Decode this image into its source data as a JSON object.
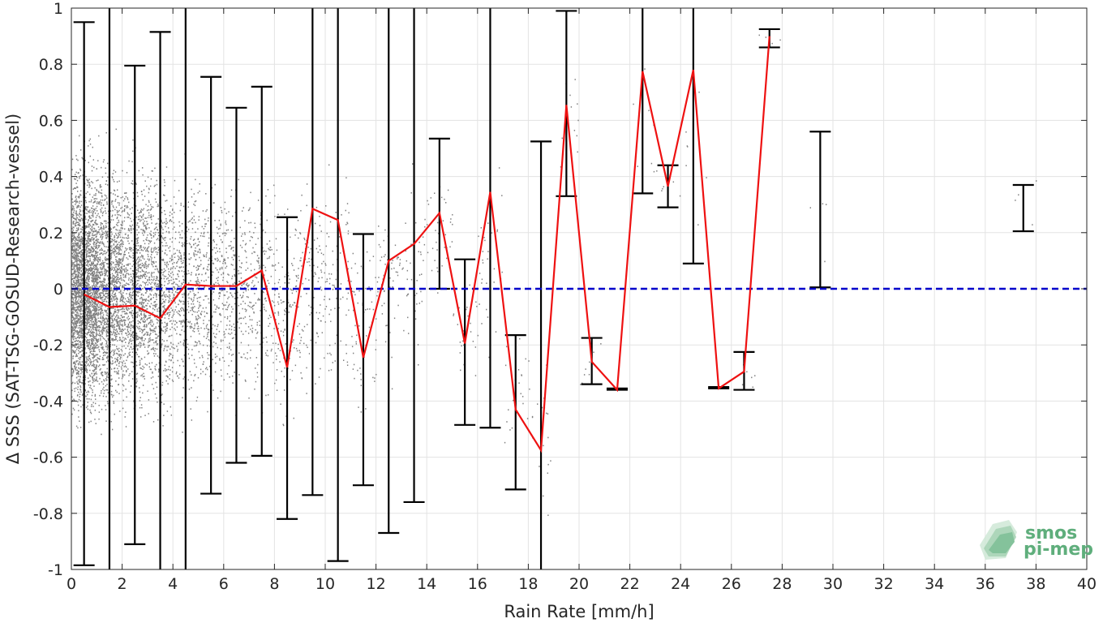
{
  "chart_data": {
    "type": "scatter",
    "xlabel": "Rain Rate [mm/h]",
    "ylabel": "Δ SSS (SAT-TSG-GOSUD-Research-vessel)",
    "xlim": [
      0,
      40
    ],
    "ylim": [
      -1,
      1
    ],
    "xticks": [
      "0",
      "2",
      "4",
      "6",
      "8",
      "10",
      "12",
      "14",
      "16",
      "18",
      "20",
      "22",
      "24",
      "26",
      "28",
      "30",
      "32",
      "34",
      "36",
      "38",
      "40"
    ],
    "yticks": [
      "-1",
      "-0.8",
      "-0.6",
      "-0.4",
      "-0.2",
      "0",
      "0.2",
      "0.4",
      "0.6",
      "0.8",
      "1"
    ],
    "grid": true,
    "reference_line": {
      "y": 0,
      "color": "#0000cc",
      "style": "dashed"
    },
    "mean_line": {
      "color": "#ee1111",
      "x": [
        0.5,
        1.5,
        2.5,
        3.5,
        4.5,
        5.5,
        6.5,
        7.5,
        8.5,
        9.5,
        10.5,
        11.5,
        12.5,
        13.5,
        14.5,
        15.5,
        16.5,
        17.5,
        18.5,
        19.5,
        20.5,
        21.5,
        22.5,
        23.5,
        24.5,
        25.5,
        26.5,
        27.5
      ],
      "y": [
        -0.02,
        -0.065,
        -0.06,
        -0.105,
        0.015,
        0.01,
        0.01,
        0.065,
        -0.28,
        0.285,
        0.245,
        -0.245,
        0.1,
        0.16,
        0.27,
        -0.195,
        0.345,
        -0.43,
        -0.575,
        0.655,
        -0.26,
        -0.36,
        0.775,
        0.365,
        0.78,
        -0.355,
        -0.295,
        0.9
      ]
    },
    "error_bars": [
      {
        "x": 0.5,
        "low": -0.985,
        "high": 0.95
      },
      {
        "x": 1.5,
        "low": -1.1,
        "high": 1.1
      },
      {
        "x": 2.5,
        "low": -0.91,
        "high": 0.795
      },
      {
        "x": 3.5,
        "low": -1.1,
        "high": 0.915
      },
      {
        "x": 4.5,
        "low": -1.1,
        "high": 1.1
      },
      {
        "x": 5.5,
        "low": -0.73,
        "high": 0.755
      },
      {
        "x": 6.5,
        "low": -0.62,
        "high": 0.645
      },
      {
        "x": 7.5,
        "low": -0.595,
        "high": 0.72
      },
      {
        "x": 8.5,
        "low": -0.82,
        "high": 0.255
      },
      {
        "x": 9.5,
        "low": -0.735,
        "high": 1.1
      },
      {
        "x": 10.5,
        "low": -0.97,
        "high": 1.1
      },
      {
        "x": 11.5,
        "low": -0.7,
        "high": 0.195
      },
      {
        "x": 12.5,
        "low": -0.87,
        "high": 1.1
      },
      {
        "x": 13.5,
        "low": -0.76,
        "high": 1.1
      },
      {
        "x": 14.5,
        "low": 0.0,
        "high": 0.535
      },
      {
        "x": 15.5,
        "low": -0.485,
        "high": 0.105
      },
      {
        "x": 16.5,
        "low": -0.495,
        "high": 1.1
      },
      {
        "x": 17.5,
        "low": -0.715,
        "high": -0.165
      },
      {
        "x": 18.5,
        "low": -1.1,
        "high": 0.525
      },
      {
        "x": 19.5,
        "low": 0.33,
        "high": 0.99
      },
      {
        "x": 20.5,
        "low": -0.34,
        "high": -0.175
      },
      {
        "x": 21.5,
        "low": -0.36,
        "high": -0.355
      },
      {
        "x": 22.5,
        "low": 0.34,
        "high": 1.1
      },
      {
        "x": 23.5,
        "low": 0.29,
        "high": 0.44
      },
      {
        "x": 24.5,
        "low": 0.09,
        "high": 1.1
      },
      {
        "x": 25.5,
        "low": -0.355,
        "high": -0.35
      },
      {
        "x": 26.5,
        "low": -0.36,
        "high": -0.225
      },
      {
        "x": 27.5,
        "low": 0.86,
        "high": 0.925
      },
      {
        "x": 29.5,
        "low": 0.005,
        "high": 0.56
      },
      {
        "x": 37.5,
        "low": 0.205,
        "high": 0.37
      }
    ],
    "scatter_color": "#808080",
    "scatter_density": [
      {
        "x": [
          0,
          1
        ],
        "n": 2600,
        "spread": 0.38,
        "center": 0.0
      },
      {
        "x": [
          1,
          2
        ],
        "n": 1400,
        "spread": 0.38,
        "center": 0.0
      },
      {
        "x": [
          2,
          3
        ],
        "n": 900,
        "spread": 0.38,
        "center": 0.0
      },
      {
        "x": [
          3,
          4
        ],
        "n": 650,
        "spread": 0.38,
        "center": 0.0
      },
      {
        "x": [
          4,
          5
        ],
        "n": 420,
        "spread": 0.36,
        "center": 0.0
      },
      {
        "x": [
          5,
          6
        ],
        "n": 300,
        "spread": 0.36,
        "center": 0.0
      },
      {
        "x": [
          6,
          7
        ],
        "n": 230,
        "spread": 0.34,
        "center": 0.0
      },
      {
        "x": [
          7,
          8
        ],
        "n": 180,
        "spread": 0.34,
        "center": 0.0
      },
      {
        "x": [
          8,
          9
        ],
        "n": 140,
        "spread": 0.34,
        "center": -0.1
      },
      {
        "x": [
          9,
          10
        ],
        "n": 110,
        "spread": 0.34,
        "center": 0.0
      },
      {
        "x": [
          10,
          11
        ],
        "n": 80,
        "spread": 0.34,
        "center": 0.0
      },
      {
        "x": [
          11,
          12
        ],
        "n": 60,
        "spread": 0.3,
        "center": -0.1
      },
      {
        "x": [
          12,
          13
        ],
        "n": 55,
        "spread": 0.3,
        "center": 0.05
      },
      {
        "x": [
          13,
          14
        ],
        "n": 45,
        "spread": 0.3,
        "center": 0.05
      },
      {
        "x": [
          14,
          15
        ],
        "n": 35,
        "spread": 0.2,
        "center": 0.2
      },
      {
        "x": [
          15,
          16
        ],
        "n": 30,
        "spread": 0.25,
        "center": -0.1
      },
      {
        "x": [
          16,
          17
        ],
        "n": 30,
        "spread": 0.3,
        "center": 0.1
      },
      {
        "x": [
          17,
          18
        ],
        "n": 20,
        "spread": 0.25,
        "center": -0.4
      },
      {
        "x": [
          18,
          19
        ],
        "n": 20,
        "spread": 0.3,
        "center": -0.5
      },
      {
        "x": [
          19,
          20
        ],
        "n": 12,
        "spread": 0.2,
        "center": 0.6
      },
      {
        "x": [
          20,
          21
        ],
        "n": 8,
        "spread": 0.08,
        "center": -0.26
      },
      {
        "x": [
          22,
          23
        ],
        "n": 8,
        "spread": 0.2,
        "center": 0.6
      },
      {
        "x": [
          23,
          24
        ],
        "n": 6,
        "spread": 0.08,
        "center": 0.37
      },
      {
        "x": [
          24,
          25
        ],
        "n": 8,
        "spread": 0.25,
        "center": 0.5
      },
      {
        "x": [
          26,
          27
        ],
        "n": 6,
        "spread": 0.06,
        "center": -0.3
      },
      {
        "x": [
          27,
          28
        ],
        "n": 4,
        "spread": 0.03,
        "center": 0.9
      },
      {
        "x": [
          29,
          30
        ],
        "n": 4,
        "spread": 0.25,
        "center": 0.3
      },
      {
        "x": [
          37,
          38
        ],
        "n": 4,
        "spread": 0.1,
        "center": 0.3
      }
    ]
  },
  "watermark": {
    "line1": "smos",
    "line2": "pi-mep",
    "color": "#5fae7c"
  }
}
